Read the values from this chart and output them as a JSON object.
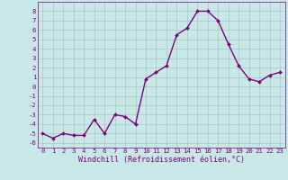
{
  "x": [
    0,
    1,
    2,
    3,
    4,
    5,
    6,
    7,
    8,
    9,
    10,
    11,
    12,
    13,
    14,
    15,
    16,
    17,
    18,
    19,
    20,
    21,
    22,
    23
  ],
  "y": [
    -5.0,
    -5.5,
    -5.0,
    -5.2,
    -5.2,
    -3.5,
    -5.0,
    -3.0,
    -3.2,
    -4.0,
    0.8,
    1.5,
    2.2,
    5.5,
    6.2,
    8.0,
    8.0,
    7.0,
    4.5,
    2.2,
    0.8,
    0.5,
    1.2,
    1.5
  ],
  "line_color": "#800080",
  "marker": "D",
  "marker_size": 2.0,
  "bg_color": "#c8e8e8",
  "grid_color": "#a8c8c8",
  "xlabel": "Windchill (Refroidissement éolien,°C)",
  "xlim": [
    -0.5,
    23.5
  ],
  "ylim": [
    -6.5,
    9.0
  ],
  "yticks": [
    -6,
    -5,
    -4,
    -3,
    -2,
    -1,
    0,
    1,
    2,
    3,
    4,
    5,
    6,
    7,
    8
  ],
  "xticks": [
    0,
    1,
    2,
    3,
    4,
    5,
    6,
    7,
    8,
    9,
    10,
    11,
    12,
    13,
    14,
    15,
    16,
    17,
    18,
    19,
    20,
    21,
    22,
    23
  ],
  "tick_color": "#800080",
  "label_fontsize": 6.0,
  "tick_fontsize": 5.2,
  "linewidth": 1.0
}
